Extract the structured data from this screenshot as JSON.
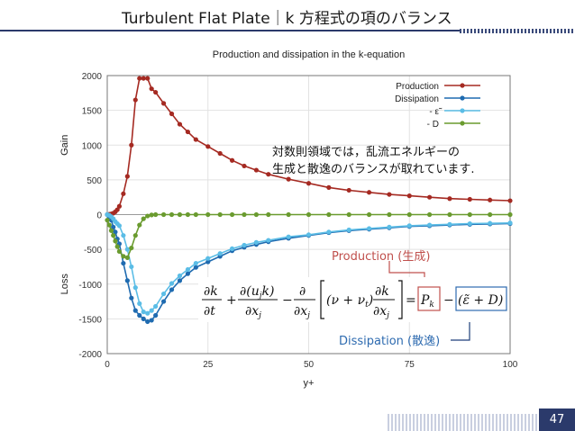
{
  "slide": {
    "title": "Turbulent Flat Plate｜k 方程式の項のバランス",
    "page_number": "47"
  },
  "annotations": {
    "note_line1": "対数則領域では，乱流エネルギーの",
    "note_line2": "生成と散逸のバランスが取れています.",
    "production_label": "Production (生成)",
    "dissipation_label": "Dissipation (散逸)",
    "production_color": "#c0504d",
    "dissipation_color": "#2e6bb0"
  },
  "chart_data": {
    "type": "line",
    "title": "Production and dissipation in the k-equation",
    "xlabel": "y+",
    "ylabel_gain": "Gain",
    "ylabel_loss": "Loss",
    "xlim": [
      0,
      100
    ],
    "ylim": [
      -2000,
      2000
    ],
    "xticks": [
      "0",
      "25",
      "50",
      "75",
      "100"
    ],
    "yticks": [
      "-2000",
      "-1500",
      "-1000",
      "-500",
      "0",
      "500",
      "1000",
      "1500",
      "2000"
    ],
    "grid": true,
    "legend_position": "top-right",
    "series": [
      {
        "name": "Production",
        "color": "#a52a22",
        "x": [
          0,
          0.5,
          1,
          1.5,
          2,
          2.5,
          3,
          4,
          5,
          6,
          7,
          8,
          9,
          10,
          11,
          12,
          14,
          16,
          18,
          20,
          22,
          25,
          28,
          31,
          34,
          37,
          40,
          45,
          50,
          55,
          60,
          65,
          70,
          75,
          80,
          85,
          90,
          95,
          100
        ],
        "y": [
          0,
          5,
          10,
          20,
          40,
          70,
          120,
          300,
          550,
          1000,
          1650,
          1960,
          1960,
          1960,
          1810,
          1760,
          1600,
          1450,
          1300,
          1190,
          1080,
          980,
          880,
          780,
          700,
          640,
          580,
          510,
          450,
          390,
          350,
          320,
          290,
          270,
          250,
          230,
          220,
          210,
          200
        ]
      },
      {
        "name": "Dissipation",
        "color": "#1f6bb0",
        "x": [
          0,
          0.5,
          1,
          1.5,
          2,
          2.5,
          3,
          4,
          5,
          6,
          7,
          8,
          9,
          10,
          11,
          12,
          14,
          16,
          18,
          20,
          22,
          25,
          28,
          31,
          34,
          37,
          40,
          45,
          50,
          55,
          60,
          65,
          70,
          75,
          80,
          85,
          90,
          95,
          100
        ],
        "y": [
          0,
          -30,
          -80,
          -180,
          -250,
          -350,
          -420,
          -700,
          -950,
          -1200,
          -1380,
          -1450,
          -1500,
          -1540,
          -1520,
          -1450,
          -1250,
          -1080,
          -950,
          -850,
          -760,
          -680,
          -600,
          -520,
          -470,
          -430,
          -390,
          -340,
          -300,
          -260,
          -230,
          -210,
          -190,
          -170,
          -160,
          -150,
          -140,
          -135,
          -130
        ]
      },
      {
        "name": "- ε̃",
        "color": "#5bbde6",
        "x": [
          0,
          0.5,
          1,
          1.5,
          2,
          2.5,
          3,
          4,
          5,
          6,
          7,
          8,
          9,
          10,
          11,
          12,
          14,
          16,
          18,
          20,
          22,
          25,
          28,
          31,
          34,
          37,
          40,
          45,
          50,
          55,
          60,
          65,
          70,
          75,
          80,
          85,
          90,
          95,
          100
        ],
        "y": [
          0,
          -10,
          -30,
          -60,
          -100,
          -130,
          -160,
          -300,
          -500,
          -750,
          -1050,
          -1280,
          -1400,
          -1420,
          -1380,
          -1320,
          -1140,
          -990,
          -880,
          -790,
          -700,
          -630,
          -560,
          -490,
          -440,
          -400,
          -370,
          -320,
          -290,
          -250,
          -220,
          -200,
          -180,
          -160,
          -150,
          -140,
          -130,
          -125,
          -120
        ]
      },
      {
        "name": "- D",
        "color": "#6a9b2f",
        "x": [
          0,
          0.5,
          1,
          1.5,
          2,
          2.5,
          3,
          4,
          5,
          6,
          7,
          8,
          9,
          10,
          11,
          12,
          14,
          16,
          18,
          20,
          22,
          25,
          28,
          31,
          34,
          37,
          40,
          45,
          50,
          55,
          60,
          65,
          70,
          75,
          80,
          85,
          90,
          95,
          100
        ],
        "y": [
          -80,
          -150,
          -230,
          -300,
          -380,
          -460,
          -530,
          -600,
          -620,
          -480,
          -300,
          -150,
          -60,
          -20,
          -5,
          0,
          0,
          0,
          0,
          0,
          0,
          0,
          0,
          0,
          0,
          0,
          0,
          0,
          0,
          0,
          0,
          0,
          0,
          0,
          0,
          0,
          0,
          0,
          0
        ]
      }
    ]
  }
}
